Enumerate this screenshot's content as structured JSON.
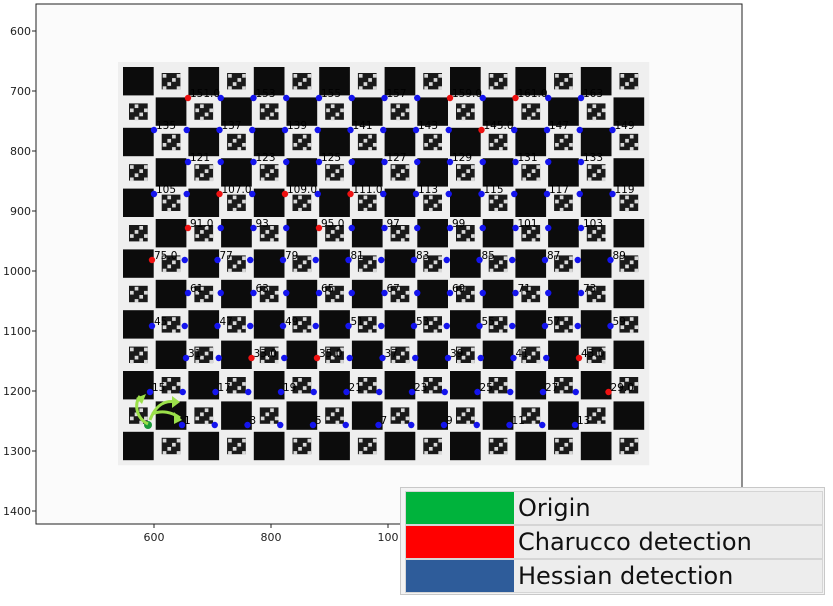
{
  "figure": {
    "y_ticks": [
      "600",
      "700",
      "800",
      "900",
      "1000",
      "1100",
      "1200",
      "1300",
      "1400"
    ],
    "x_ticks": [
      "600",
      "800",
      "100"
    ]
  },
  "markers": {
    "colors": {
      "origin": "#1a9a3a",
      "charucco": "#ee1111",
      "hessian": "#1414ee",
      "arrow": "#9be04a"
    },
    "labels": [
      "151.0",
      "153",
      "155",
      "157",
      "159.0",
      "161.0",
      "163",
      "135",
      "137",
      "139",
      "141",
      "143",
      "145.0",
      "147",
      "149",
      "121",
      "123",
      "125",
      "127",
      "129",
      "131",
      "133",
      "105",
      "107.0",
      "109.0",
      "111.0",
      "113",
      "115",
      "117",
      "119",
      "91.0",
      "93",
      "95.0",
      "97",
      "99",
      "101",
      "103",
      "75.0",
      "77",
      "79",
      "81",
      "83",
      "85",
      "87",
      "89",
      "61",
      "63",
      "65",
      "67",
      "69",
      "71",
      "73",
      "45",
      "47",
      "49",
      "51",
      "53",
      "55",
      "57",
      "59",
      "31",
      "33.0",
      "35.0",
      "37",
      "39",
      "41",
      "43.0",
      "15",
      "17",
      "19",
      "21",
      "23",
      "25",
      "27",
      "29.0",
      "1",
      "3",
      "5",
      "7",
      "9",
      "11",
      "13"
    ]
  },
  "legend": {
    "items": [
      {
        "label": "Origin",
        "color": "#00b33c"
      },
      {
        "label": "Charucco detection",
        "color": "#ff0000"
      },
      {
        "label": "Hessian detection",
        "color": "#2e5c9a"
      }
    ]
  }
}
